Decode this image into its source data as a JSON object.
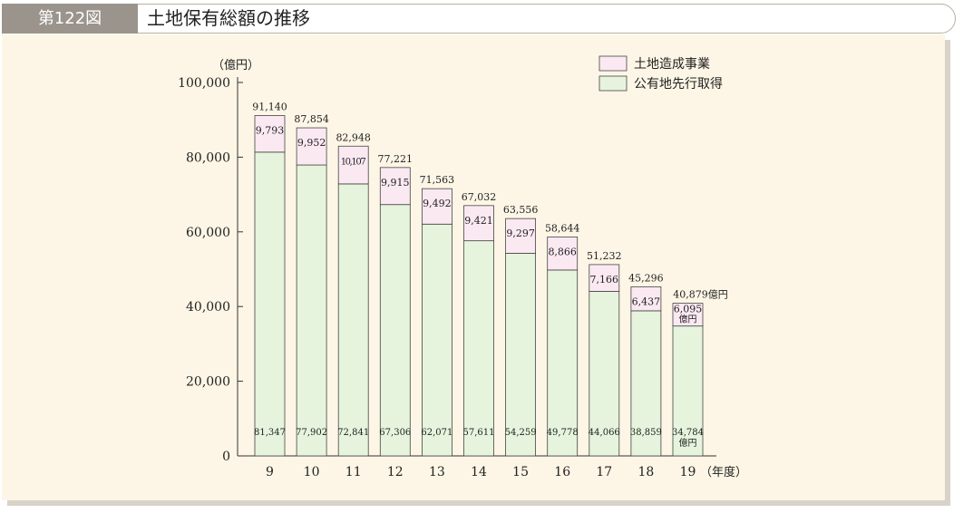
{
  "header": {
    "figure_number": "第122図",
    "title": "土地保有総額の推移"
  },
  "colors": {
    "upper_fill": "#fbe9f2",
    "lower_fill": "#e6f4dd",
    "bar_stroke": "#444444",
    "panel_bg": "#fdf6e6"
  },
  "chart_data": {
    "type": "bar",
    "stacked": true,
    "y_unit_label": "（億円）",
    "x_unit_label": "（年度）",
    "ylim": [
      0,
      100000
    ],
    "y_ticks": [
      0,
      20000,
      40000,
      60000,
      80000,
      100000
    ],
    "y_tick_labels": [
      "0",
      "20,000",
      "40,000",
      "60,000",
      "80,000",
      "100,000"
    ],
    "categories": [
      "9",
      "10",
      "11",
      "12",
      "13",
      "14",
      "15",
      "16",
      "17",
      "18",
      "19"
    ],
    "legend": [
      "土地造成事業",
      "公有地先行取得"
    ],
    "legend_position": "top-right",
    "series": [
      {
        "name": "公有地先行取得",
        "values": [
          81347,
          77902,
          72841,
          67306,
          62071,
          57611,
          54259,
          49778,
          44066,
          38859,
          34784
        ],
        "labels": [
          "81,347",
          "77,902",
          "72,841",
          "67,306",
          "62,071",
          "57,611",
          "54,259",
          "49,778",
          "44,066",
          "38,859",
          "34,784"
        ]
      },
      {
        "name": "土地造成事業",
        "values": [
          9793,
          9952,
          10107,
          9915,
          9492,
          9421,
          9297,
          8866,
          7166,
          6437,
          6095
        ],
        "labels": [
          "9,793",
          "9,952",
          "10,107",
          "9,915",
          "9,492",
          "9,421",
          "9,297",
          "8,866",
          "7,166",
          "6,437",
          "6,095"
        ]
      }
    ],
    "totals": [
      91140,
      87854,
      82948,
      77221,
      71563,
      67032,
      63556,
      58644,
      51232,
      45296,
      40879
    ],
    "total_labels": [
      "91,140",
      "87,854",
      "82,948",
      "77,221",
      "71,563",
      "67,032",
      "63,556",
      "58,644",
      "51,232",
      "45,296",
      "40,879億円"
    ],
    "last_bar_unit_suffix": "億円"
  }
}
